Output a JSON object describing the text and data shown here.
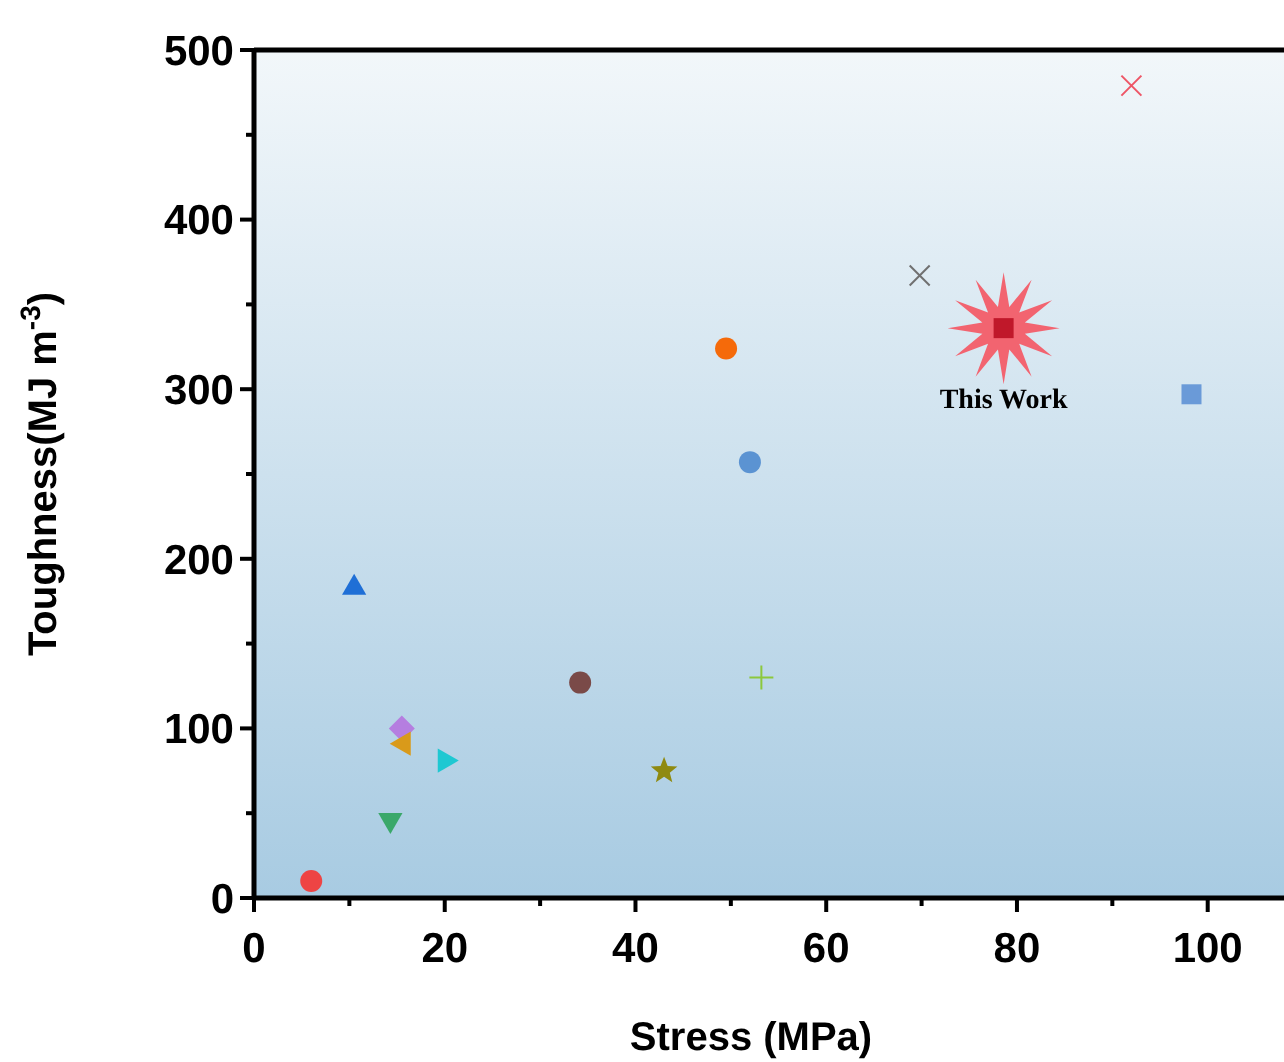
{
  "chart_data": {
    "type": "scatter",
    "xlabel": "Stress (MPa)",
    "ylabel": "Toughness(MJ m$^{-3}$)",
    "xlim": [
      0,
      108
    ],
    "ylim": [
      0,
      500
    ],
    "xticks": [
      0,
      {
        "value": 10,
        "label": null
      },
      20,
      {
        "value": 30,
        "label": null
      },
      40,
      {
        "value": 50,
        "label": null
      },
      60,
      {
        "value": 70,
        "label": null
      },
      80,
      {
        "value": 90,
        "label": null
      },
      100
    ],
    "yticks": [
      0,
      {
        "value": 50,
        "label": null
      },
      100,
      {
        "value": 150,
        "label": null
      },
      200,
      {
        "value": 250,
        "label": null
      },
      300,
      {
        "value": 350,
        "label": null
      },
      400,
      {
        "value": 450,
        "label": null
      },
      500
    ],
    "grid": false,
    "series": [
      {
        "color": "#ee4444",
        "marker": "circle",
        "x": [
          6
        ],
        "values": [
          10
        ]
      },
      {
        "color": "#1f6fd6",
        "marker": "triangle",
        "x": [
          10.5
        ],
        "values": [
          183
        ]
      },
      {
        "color": "#3aa86a",
        "marker": "triangle-down",
        "x": [
          14.3
        ],
        "values": [
          46
        ]
      },
      {
        "color": "#b57ee0",
        "marker": "diamond",
        "x": [
          15.5
        ],
        "values": [
          100
        ]
      },
      {
        "color": "#d99a1a",
        "marker": "triangle-left",
        "x": [
          15.7
        ],
        "values": [
          91
        ]
      },
      {
        "color": "#1ec8d2",
        "marker": "triangle-right",
        "x": [
          20
        ],
        "values": [
          81
        ]
      },
      {
        "color": "#7a4a48",
        "marker": "circle",
        "x": [
          34.2
        ],
        "values": [
          127
        ]
      },
      {
        "color": "#8f8a10",
        "marker": "star",
        "x": [
          43
        ],
        "values": [
          75
        ]
      },
      {
        "color": "#8cc83c",
        "marker": "plus",
        "x": [
          53.2
        ],
        "values": [
          130
        ]
      },
      {
        "color": "#f56a0a",
        "marker": "circle",
        "x": [
          49.5
        ],
        "values": [
          324
        ]
      },
      {
        "color": "#5b93d2",
        "marker": "circle",
        "x": [
          52
        ],
        "values": [
          257
        ]
      },
      {
        "color": "#707070",
        "marker": "cross",
        "x": [
          69.8
        ],
        "values": [
          367
        ]
      },
      {
        "color": "#c0182a",
        "marker": "square",
        "x": [
          78.6
        ],
        "values": [
          336
        ]
      },
      {
        "color": "#ee5566",
        "marker": "cross",
        "x": [
          92
        ],
        "values": [
          479
        ]
      },
      {
        "color": "#6a9ad8",
        "marker": "square",
        "x": [
          98.3
        ],
        "values": [
          297
        ]
      }
    ],
    "annotations": [
      {
        "text": "This Work",
        "x": 78.6,
        "y": 336
      }
    ]
  }
}
